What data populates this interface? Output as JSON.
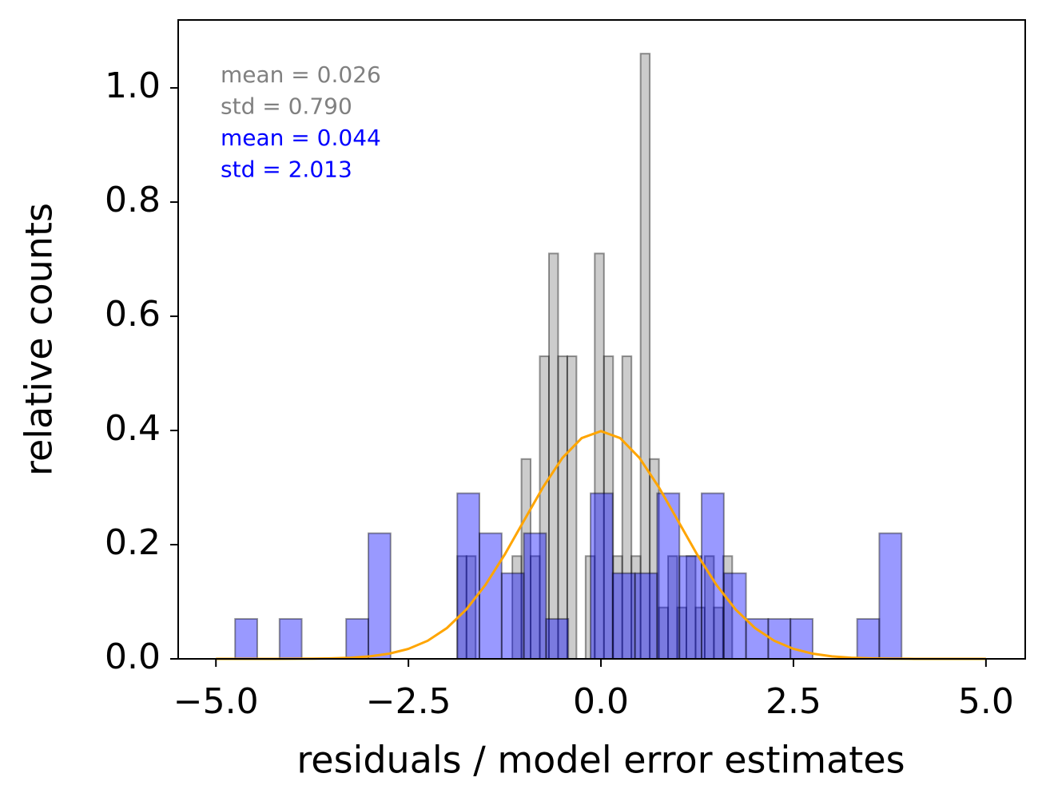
{
  "chart_data": {
    "type": "histogram",
    "xlabel": "residuals / model error estimates",
    "ylabel": "relative counts",
    "xlim": [
      -5.49,
      5.51
    ],
    "ylim": [
      0,
      1.119
    ],
    "xticks": [
      {
        "value": -5.0,
        "label": "−5.0"
      },
      {
        "value": -2.5,
        "label": "−2.5"
      },
      {
        "value": 0.0,
        "label": "0.0"
      },
      2.5,
      {
        "value": 5.0,
        "label": "5.0"
      }
    ],
    "yticks": [
      {
        "value": 0.0,
        "label": "0.0"
      },
      0.2,
      0.4,
      0.6,
      0.8,
      {
        "value": 1.0,
        "label": "1.0"
      }
    ],
    "annotations": [
      {
        "text": "mean = 0.026",
        "color": "#808080"
      },
      {
        "text": "std = 0.790",
        "color": "#808080"
      },
      {
        "text": "mean = 0.044",
        "color": "#0000ff"
      },
      {
        "text": "std = 2.013",
        "color": "#0000ff"
      }
    ],
    "series": [
      {
        "color": "#808080",
        "bins": [
          -1.865,
          -1.746,
          -1.627,
          -1.508,
          -1.389,
          -1.27,
          -1.151,
          -1.032,
          -0.913,
          -0.794,
          -0.675,
          -0.556,
          -0.437,
          -0.318,
          -0.199,
          -0.08,
          0.039,
          0.158,
          0.277,
          0.396,
          0.515,
          0.634,
          0.753,
          0.872,
          0.991,
          1.11,
          1.229,
          1.348,
          1.467,
          1.586,
          1.705
        ],
        "values": [
          0.18,
          0.18,
          0,
          0,
          0,
          0,
          0.18,
          0.35,
          0.18,
          0.53,
          0.71,
          0.53,
          0.53,
          0,
          0.18,
          0.71,
          0.53,
          0.18,
          0.53,
          0.18,
          1.06,
          0.35,
          0.09,
          0.18,
          0.09,
          0.18,
          0.09,
          0.18,
          0.09,
          0.18
        ]
      },
      {
        "color": "#0000ff",
        "bins": [
          -4.751,
          -4.463,
          -4.174,
          -3.886,
          -3.597,
          -3.309,
          -3.02,
          -2.732,
          -2.443,
          -2.155,
          -1.866,
          -1.578,
          -1.289,
          -1.001,
          -0.712,
          -0.424,
          -0.135,
          0.153,
          0.442,
          0.73,
          1.019,
          1.307,
          1.596,
          1.884,
          2.173,
          2.461,
          2.75,
          3.038,
          3.327,
          3.615,
          3.904
        ],
        "values": [
          0.07,
          0,
          0.07,
          0,
          0,
          0.07,
          0.22,
          0,
          0,
          0,
          0.29,
          0.22,
          0.15,
          0.22,
          0.07,
          0,
          0.29,
          0.15,
          0.15,
          0.29,
          0.18,
          0.29,
          0.15,
          0.07,
          0.07,
          0.07,
          0,
          0,
          0.07,
          0.22
        ]
      }
    ],
    "curve": {
      "type": "line",
      "color": "#ffa500",
      "x": [
        -5,
        -4.75,
        -4.5,
        -4.25,
        -4,
        -3.75,
        -3.5,
        -3.25,
        -3,
        -2.75,
        -2.5,
        -2.25,
        -2,
        -1.75,
        -1.5,
        -1.25,
        -1,
        -0.75,
        -0.5,
        -0.25,
        0,
        0.25,
        0.5,
        0.75,
        1,
        1.25,
        1.5,
        1.75,
        2,
        2.25,
        2.5,
        2.75,
        3,
        3.25,
        3.5,
        3.75,
        4,
        4.25,
        4.5,
        4.75,
        5
      ],
      "values": [
        0,
        0,
        0,
        0,
        0.0001,
        0.0004,
        0.0009,
        0.002,
        0.0044,
        0.0091,
        0.0175,
        0.0317,
        0.054,
        0.0863,
        0.1295,
        0.1826,
        0.242,
        0.3011,
        0.3521,
        0.3867,
        0.3989,
        0.3867,
        0.3521,
        0.3011,
        0.242,
        0.1826,
        0.1295,
        0.0863,
        0.054,
        0.0317,
        0.0175,
        0.0091,
        0.0044,
        0.002,
        0.0009,
        0.0004,
        0.0001,
        0,
        0,
        0,
        0
      ]
    }
  }
}
